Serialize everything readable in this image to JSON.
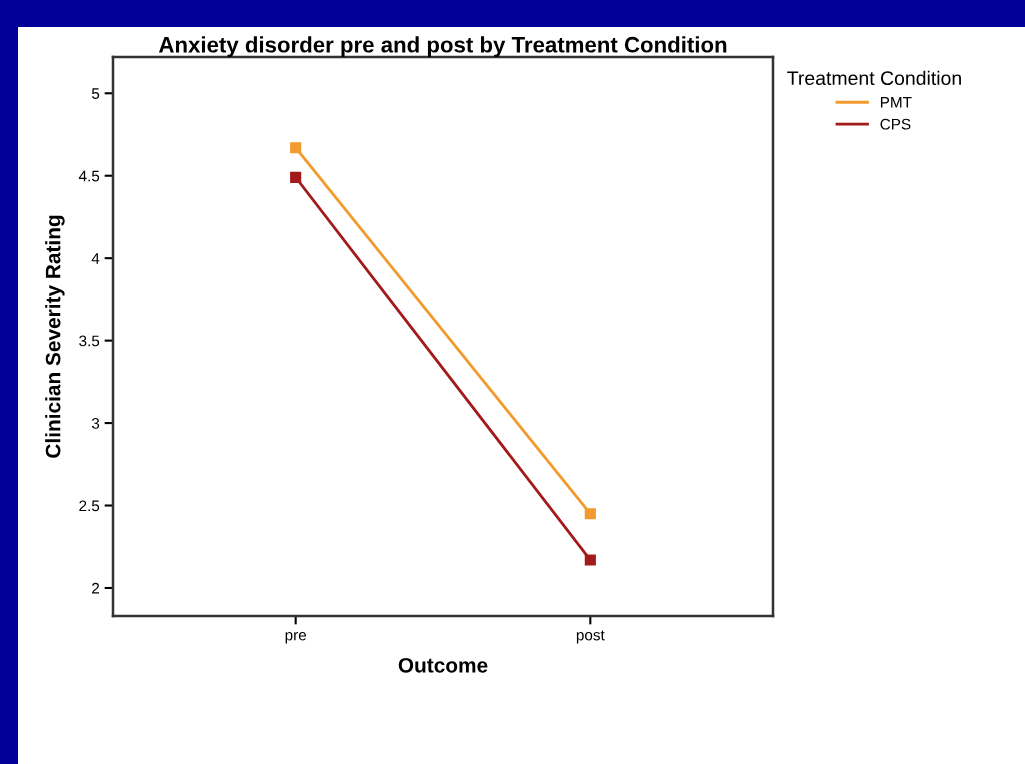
{
  "chart_data": {
    "type": "line",
    "title": "Anxiety disorder pre and post by Treatment Condition",
    "xlabel": "Outcome",
    "ylabel": "Clinician Severity Rating",
    "legend_title": "Treatment Condition",
    "categories": [
      "pre",
      "post"
    ],
    "series": [
      {
        "name": "PMT",
        "color": "#f39a2e",
        "values": [
          4.67,
          2.45
        ]
      },
      {
        "name": "CPS",
        "color": "#a31a1a",
        "values": [
          4.49,
          2.17
        ]
      }
    ],
    "ylim": [
      1.83,
      5.22
    ],
    "yticks": [
      2,
      2.5,
      3,
      3.5,
      4,
      4.5,
      5
    ],
    "marker": "square",
    "line_style": "solid",
    "grid": false,
    "legend": "top right"
  }
}
